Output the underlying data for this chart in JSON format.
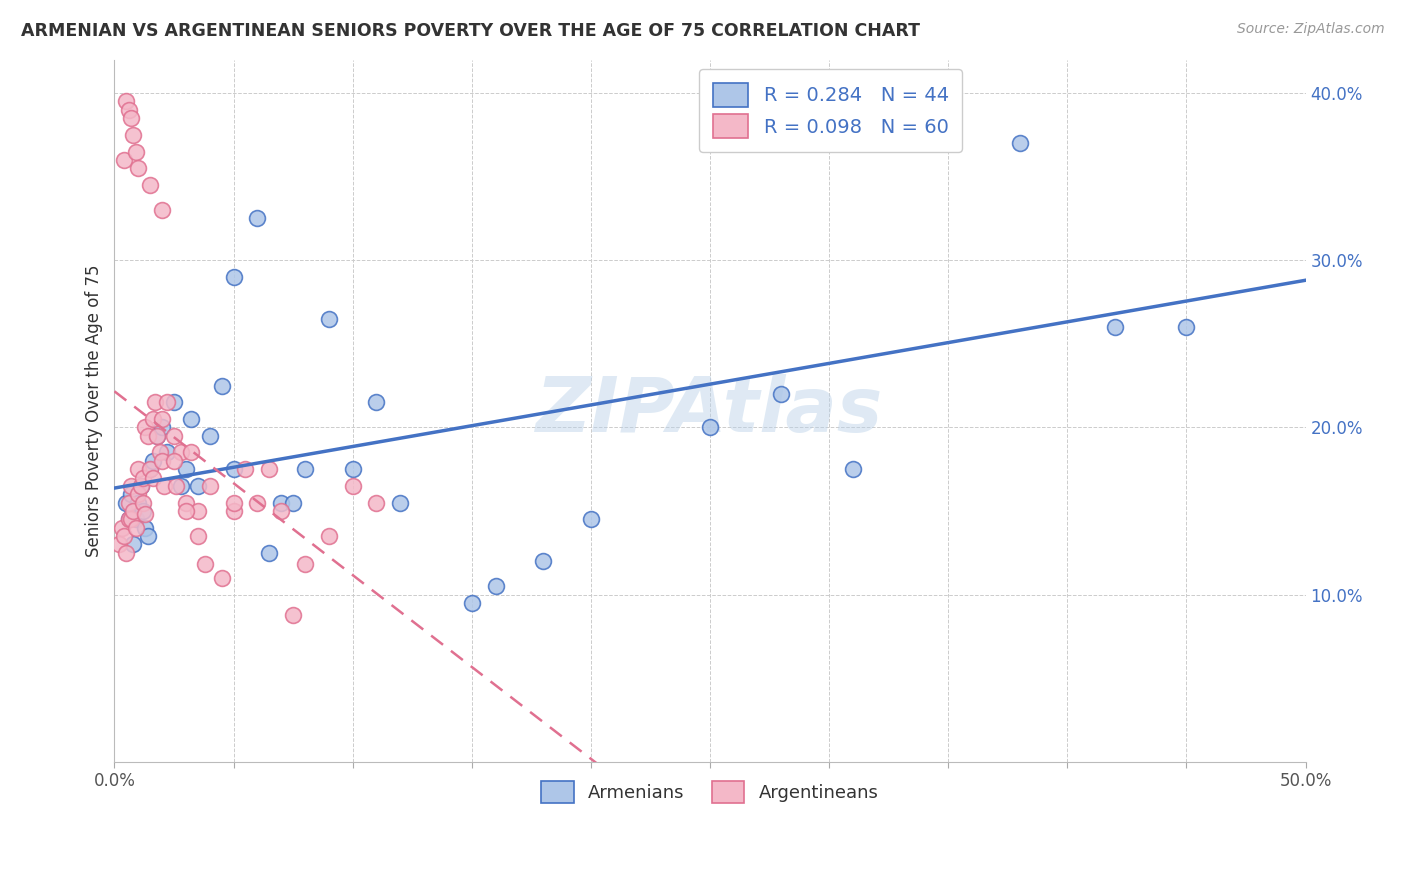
{
  "title": "ARMENIAN VS ARGENTINEAN SENIORS POVERTY OVER THE AGE OF 75 CORRELATION CHART",
  "source": "Source: ZipAtlas.com",
  "ylabel": "Seniors Poverty Over the Age of 75",
  "xlim": [
    0.0,
    0.5
  ],
  "ylim": [
    0.0,
    0.42
  ],
  "xticks": [
    0.0,
    0.05,
    0.1,
    0.15,
    0.2,
    0.25,
    0.3,
    0.35,
    0.4,
    0.45,
    0.5
  ],
  "yticks": [
    0.0,
    0.1,
    0.2,
    0.3,
    0.4
  ],
  "armenian_face_color": "#aec6e8",
  "armenian_edge_color": "#4472c4",
  "argentinean_face_color": "#f4b8c8",
  "argentinean_edge_color": "#e07090",
  "armenian_line_color": "#4472c4",
  "argentinean_line_color": "#e07090",
  "watermark": "ZIPAtlas",
  "legend_blue_label": "R = 0.284   N = 44",
  "legend_pink_label": "R = 0.098   N = 60",
  "bottom_legend_armenians": "Armenians",
  "bottom_legend_argentineans": "Argentineans",
  "armenians_x": [
    0.005,
    0.006,
    0.007,
    0.008,
    0.009,
    0.01,
    0.011,
    0.012,
    0.013,
    0.014,
    0.015,
    0.016,
    0.018,
    0.02,
    0.022,
    0.025,
    0.028,
    0.03,
    0.032,
    0.035,
    0.04,
    0.045,
    0.05,
    0.06,
    0.065,
    0.07,
    0.08,
    0.09,
    0.1,
    0.11,
    0.12,
    0.15,
    0.2,
    0.25,
    0.28,
    0.31,
    0.34,
    0.38,
    0.42,
    0.45,
    0.16,
    0.18,
    0.05,
    0.075
  ],
  "armenians_y": [
    0.155,
    0.145,
    0.16,
    0.13,
    0.145,
    0.155,
    0.165,
    0.15,
    0.14,
    0.135,
    0.175,
    0.18,
    0.195,
    0.2,
    0.185,
    0.215,
    0.165,
    0.175,
    0.205,
    0.165,
    0.195,
    0.225,
    0.29,
    0.325,
    0.125,
    0.155,
    0.175,
    0.265,
    0.175,
    0.215,
    0.155,
    0.095,
    0.145,
    0.2,
    0.22,
    0.175,
    0.38,
    0.37,
    0.26,
    0.26,
    0.105,
    0.12,
    0.175,
    0.155
  ],
  "argentineans_x": [
    0.002,
    0.003,
    0.004,
    0.005,
    0.006,
    0.006,
    0.007,
    0.007,
    0.008,
    0.009,
    0.01,
    0.01,
    0.011,
    0.012,
    0.012,
    0.013,
    0.013,
    0.014,
    0.015,
    0.016,
    0.016,
    0.017,
    0.018,
    0.019,
    0.02,
    0.021,
    0.022,
    0.025,
    0.026,
    0.028,
    0.03,
    0.032,
    0.035,
    0.038,
    0.04,
    0.045,
    0.05,
    0.055,
    0.06,
    0.065,
    0.07,
    0.075,
    0.08,
    0.09,
    0.1,
    0.11,
    0.02,
    0.025,
    0.03,
    0.035,
    0.004,
    0.005,
    0.006,
    0.007,
    0.008,
    0.009,
    0.01,
    0.015,
    0.02,
    0.05
  ],
  "argentineans_y": [
    0.13,
    0.14,
    0.135,
    0.125,
    0.155,
    0.145,
    0.165,
    0.145,
    0.15,
    0.14,
    0.16,
    0.175,
    0.165,
    0.17,
    0.155,
    0.148,
    0.2,
    0.195,
    0.175,
    0.17,
    0.205,
    0.215,
    0.195,
    0.185,
    0.205,
    0.165,
    0.215,
    0.195,
    0.165,
    0.185,
    0.155,
    0.185,
    0.15,
    0.118,
    0.165,
    0.11,
    0.15,
    0.175,
    0.155,
    0.175,
    0.15,
    0.088,
    0.118,
    0.135,
    0.165,
    0.155,
    0.18,
    0.18,
    0.15,
    0.135,
    0.36,
    0.395,
    0.39,
    0.385,
    0.375,
    0.365,
    0.355,
    0.345,
    0.33,
    0.155
  ]
}
